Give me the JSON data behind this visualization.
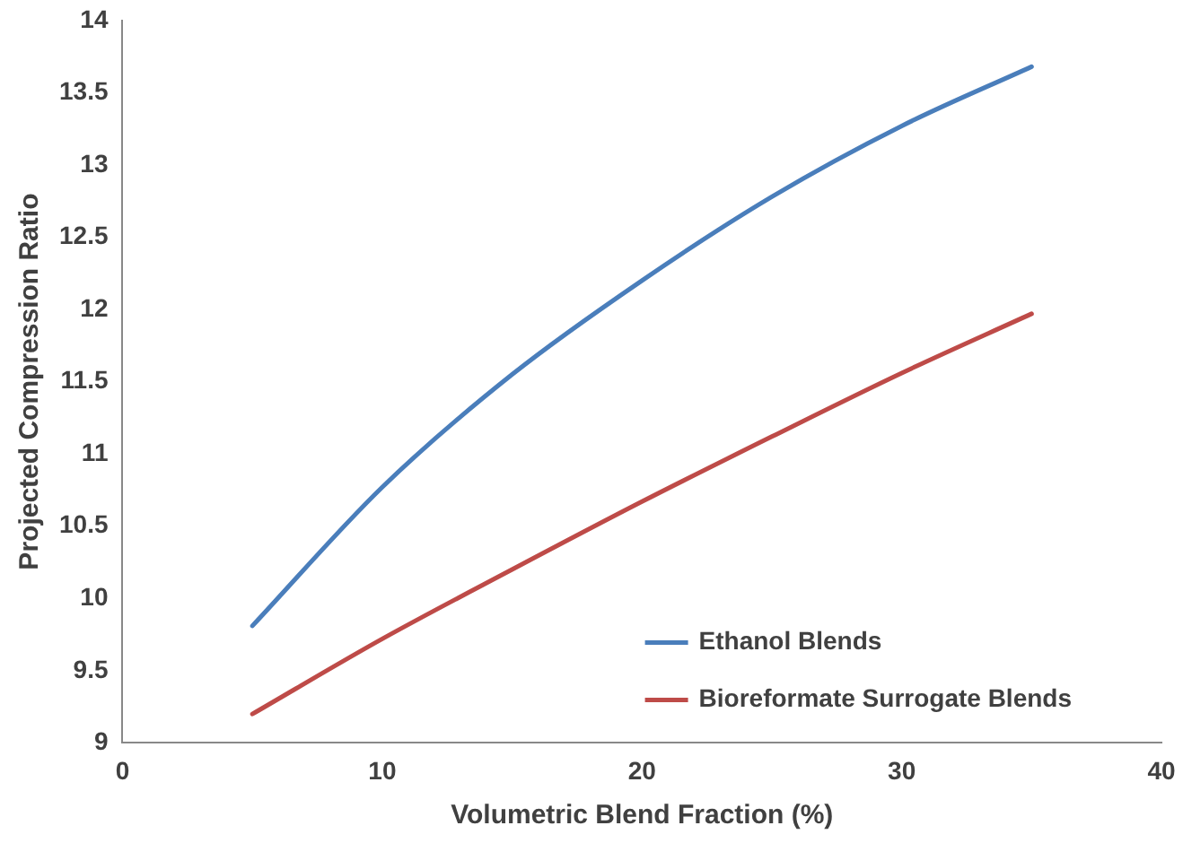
{
  "chart_data": {
    "type": "line",
    "xlabel": "Volumetric Blend Fraction (%)",
    "ylabel": "Projected Compression Ratio",
    "x": [
      5,
      10,
      15,
      20,
      25,
      30,
      35
    ],
    "series": [
      {
        "name": "Ethanol Blends",
        "color": "#4a7ebb",
        "values": [
          9.81,
          10.77,
          11.55,
          12.2,
          12.78,
          13.27,
          13.68
        ]
      },
      {
        "name": "Bioreformate Surrogate Blends",
        "color": "#be4b48",
        "values": [
          9.2,
          9.72,
          10.2,
          10.67,
          11.12,
          11.56,
          11.97
        ]
      }
    ],
    "xlim": [
      0,
      40
    ],
    "xticks": [
      0,
      10,
      20,
      30,
      40
    ],
    "ylim": [
      9,
      14
    ],
    "yticks": [
      9,
      9.5,
      10,
      10.5,
      11,
      11.5,
      12,
      12.5,
      13,
      13.5,
      14
    ],
    "grid": false,
    "legend": "bottom right",
    "marker": "none",
    "line_style": "solid"
  }
}
